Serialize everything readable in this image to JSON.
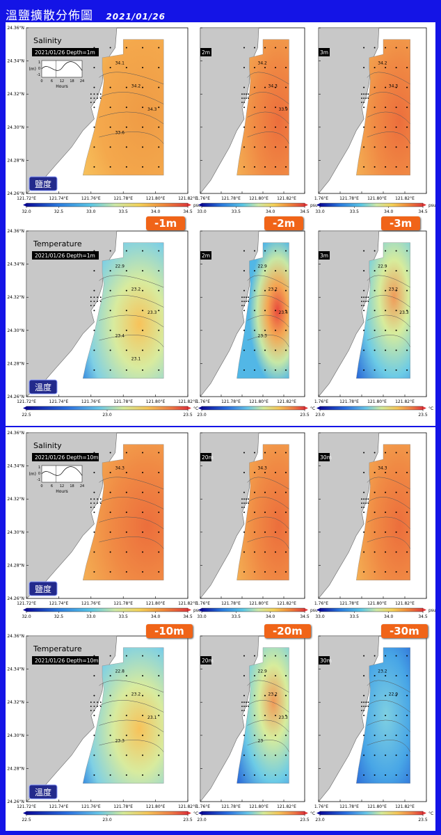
{
  "header": {
    "title": "溫鹽擴散分佈圖",
    "date": "2021/01/26"
  },
  "sections": [
    {
      "depths": [
        "-1m",
        "-2m",
        "-3m"
      ],
      "salinity": {
        "title": "Salinity",
        "label": "2021/01/26 Depth=1m",
        "badge": "鹽度",
        "partial_labels": [
          "2m",
          "3m"
        ]
      },
      "temperature": {
        "title": "Temperature",
        "label": "2021/01/26 Depth=1m",
        "badge": "溫度",
        "partial_labels": [
          "2m",
          "3m"
        ]
      }
    },
    {
      "depths": [
        "-10m",
        "-20m",
        "-30m"
      ],
      "salinity": {
        "title": "Salinity",
        "label": "2021/01/26 Depth=10m",
        "badge": "鹽度",
        "partial_labels": [
          "20m",
          "30m"
        ]
      },
      "temperature": {
        "title": "Temperature",
        "label": "2021/01/26 Depth=10m",
        "badge": "溫度",
        "partial_labels": [
          "20m",
          "30m"
        ]
      }
    }
  ],
  "axes": {
    "lat_ticks": [
      "24.36°N",
      "24.34°N",
      "24.32°N",
      "24.30°N",
      "24.28°N",
      "24.26°N"
    ],
    "lon_ticks": [
      "121.72°E",
      "121.74°E",
      "121.76°E",
      "121.78°E",
      "121.80°E",
      "121.82°E"
    ],
    "lon_ticks_partial": [
      "1.76°E",
      "121.78°E",
      "121.80°E",
      "121.82°E"
    ]
  },
  "tide_inset": {
    "ylabel": "(m)",
    "yticks": [
      "1",
      "0",
      "-1"
    ],
    "xticks": [
      "0",
      "6",
      "12",
      "18",
      "24"
    ],
    "xlabel": "Hours"
  },
  "colorbars": {
    "salinity": {
      "ticks": [
        "32.0",
        "32.5",
        "33.0",
        "33.5",
        "34.0",
        "34.5"
      ],
      "unit": "psu",
      "ticks_partial": [
        "33.0",
        "33.5",
        "34.0",
        "34.5"
      ]
    },
    "temperature": {
      "ticks": [
        "22.5",
        "23.0",
        "23.5"
      ],
      "unit": "°C",
      "ticks_partial": [
        "23.0",
        "23.5"
      ]
    }
  },
  "chart_data": [
    {
      "type": "heatmap",
      "title": "Salinity",
      "depth": "1m",
      "unit": "psu",
      "range": [
        32.0,
        34.5
      ],
      "contour_labels": [
        "34.1",
        "34.2",
        "34.3",
        "33.6"
      ]
    },
    {
      "type": "heatmap",
      "depth": "2m",
      "unit": "psu",
      "range": [
        32.0,
        34.5
      ],
      "contour_labels": [
        "34.2",
        "34.3",
        "33.9"
      ]
    },
    {
      "type": "heatmap",
      "depth": "3m",
      "unit": "psu",
      "range": [
        32.0,
        34.5
      ],
      "contour_labels": [
        "34.2",
        "34.3"
      ]
    },
    {
      "type": "heatmap",
      "title": "Temperature",
      "depth": "1m",
      "unit": "°C",
      "range": [
        22.5,
        23.5
      ],
      "contour_labels": [
        "22.9",
        "23.2",
        "23.3",
        "23.4",
        "23.1"
      ]
    },
    {
      "type": "heatmap",
      "depth": "2m",
      "unit": "°C",
      "range": [
        22.5,
        23.5
      ],
      "contour_labels": [
        "22.9",
        "23.2",
        "23.4",
        "23.3"
      ]
    },
    {
      "type": "heatmap",
      "depth": "3m",
      "unit": "°C",
      "range": [
        22.5,
        23.5
      ],
      "contour_labels": [
        "22.9",
        "23.2",
        "23.3"
      ]
    },
    {
      "type": "heatmap",
      "title": "Salinity",
      "depth": "10m",
      "unit": "psu",
      "range": [
        32.0,
        34.5
      ],
      "contour_labels": [
        "34.3"
      ]
    },
    {
      "type": "heatmap",
      "depth": "20m",
      "unit": "psu",
      "range": [
        32.0,
        34.5
      ],
      "contour_labels": [
        "34.3"
      ]
    },
    {
      "type": "heatmap",
      "depth": "30m",
      "unit": "psu",
      "range": [
        32.0,
        34.5
      ],
      "contour_labels": [
        "34.3"
      ]
    },
    {
      "type": "heatmap",
      "title": "Temperature",
      "depth": "10m",
      "unit": "°C",
      "range": [
        22.5,
        23.5
      ],
      "contour_labels": [
        "22.8",
        "23.2",
        "23.1",
        "23.3"
      ]
    },
    {
      "type": "heatmap",
      "depth": "20m",
      "unit": "°C",
      "range": [
        22.5,
        23.5
      ],
      "contour_labels": [
        "22.9",
        "23.2",
        "23.3",
        "23"
      ]
    },
    {
      "type": "heatmap",
      "depth": "30m",
      "unit": "°C",
      "range": [
        22.5,
        23.5
      ],
      "contour_labels": [
        "23.2",
        "22.9"
      ]
    }
  ]
}
